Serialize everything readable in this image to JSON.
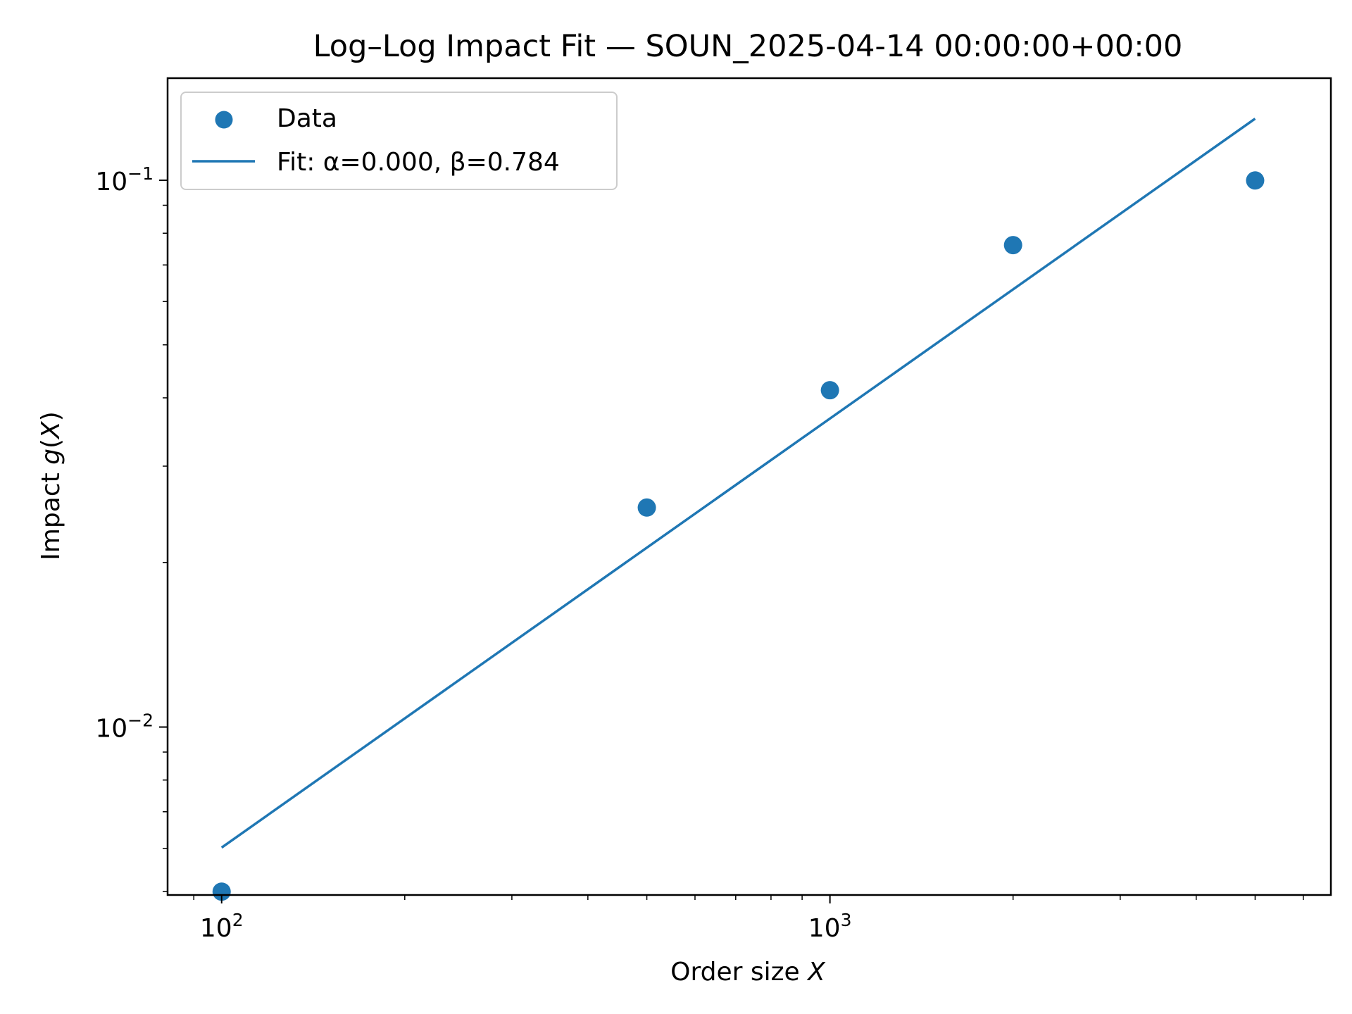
{
  "chart_data": {
    "type": "scatter",
    "title": "Log–Log Impact Fit — SOUN_2025-04-14 00:00:00+00:00",
    "xlabel": {
      "prefix": "Order size ",
      "var": "X"
    },
    "ylabel": {
      "prefix": "Impact ",
      "func": "g",
      "open": "(",
      "var": "X",
      "close": ")"
    },
    "xscale": "log",
    "yscale": "log",
    "xlim": [
      81.5,
      6660
    ],
    "ylim": [
      0.00493,
      0.1537
    ],
    "grid": false,
    "legend_position": "upper-left",
    "x_ticks": [
      {
        "value": 100,
        "base": "10",
        "exp": "2"
      },
      {
        "value": 1000,
        "base": "10",
        "exp": "3"
      }
    ],
    "y_ticks": [
      {
        "value": 0.01,
        "base": "10",
        "exp": "−2"
      },
      {
        "value": 0.1,
        "base": "10",
        "exp": "−1"
      }
    ],
    "series": [
      {
        "name": "Data",
        "kind": "scatter",
        "color": "#1f77b4",
        "points": [
          {
            "x": 100,
            "y": 0.005
          },
          {
            "x": 500,
            "y": 0.0252
          },
          {
            "x": 1000,
            "y": 0.0413
          },
          {
            "x": 2000,
            "y": 0.0761
          },
          {
            "x": 5000,
            "y": 0.0999
          }
        ]
      },
      {
        "name": "Fit: α=0.000, β=0.784",
        "kind": "line",
        "color": "#1f77b4",
        "x": [
          100,
          5000
        ],
        "y": [
          0.00602,
          0.1296
        ]
      }
    ]
  }
}
